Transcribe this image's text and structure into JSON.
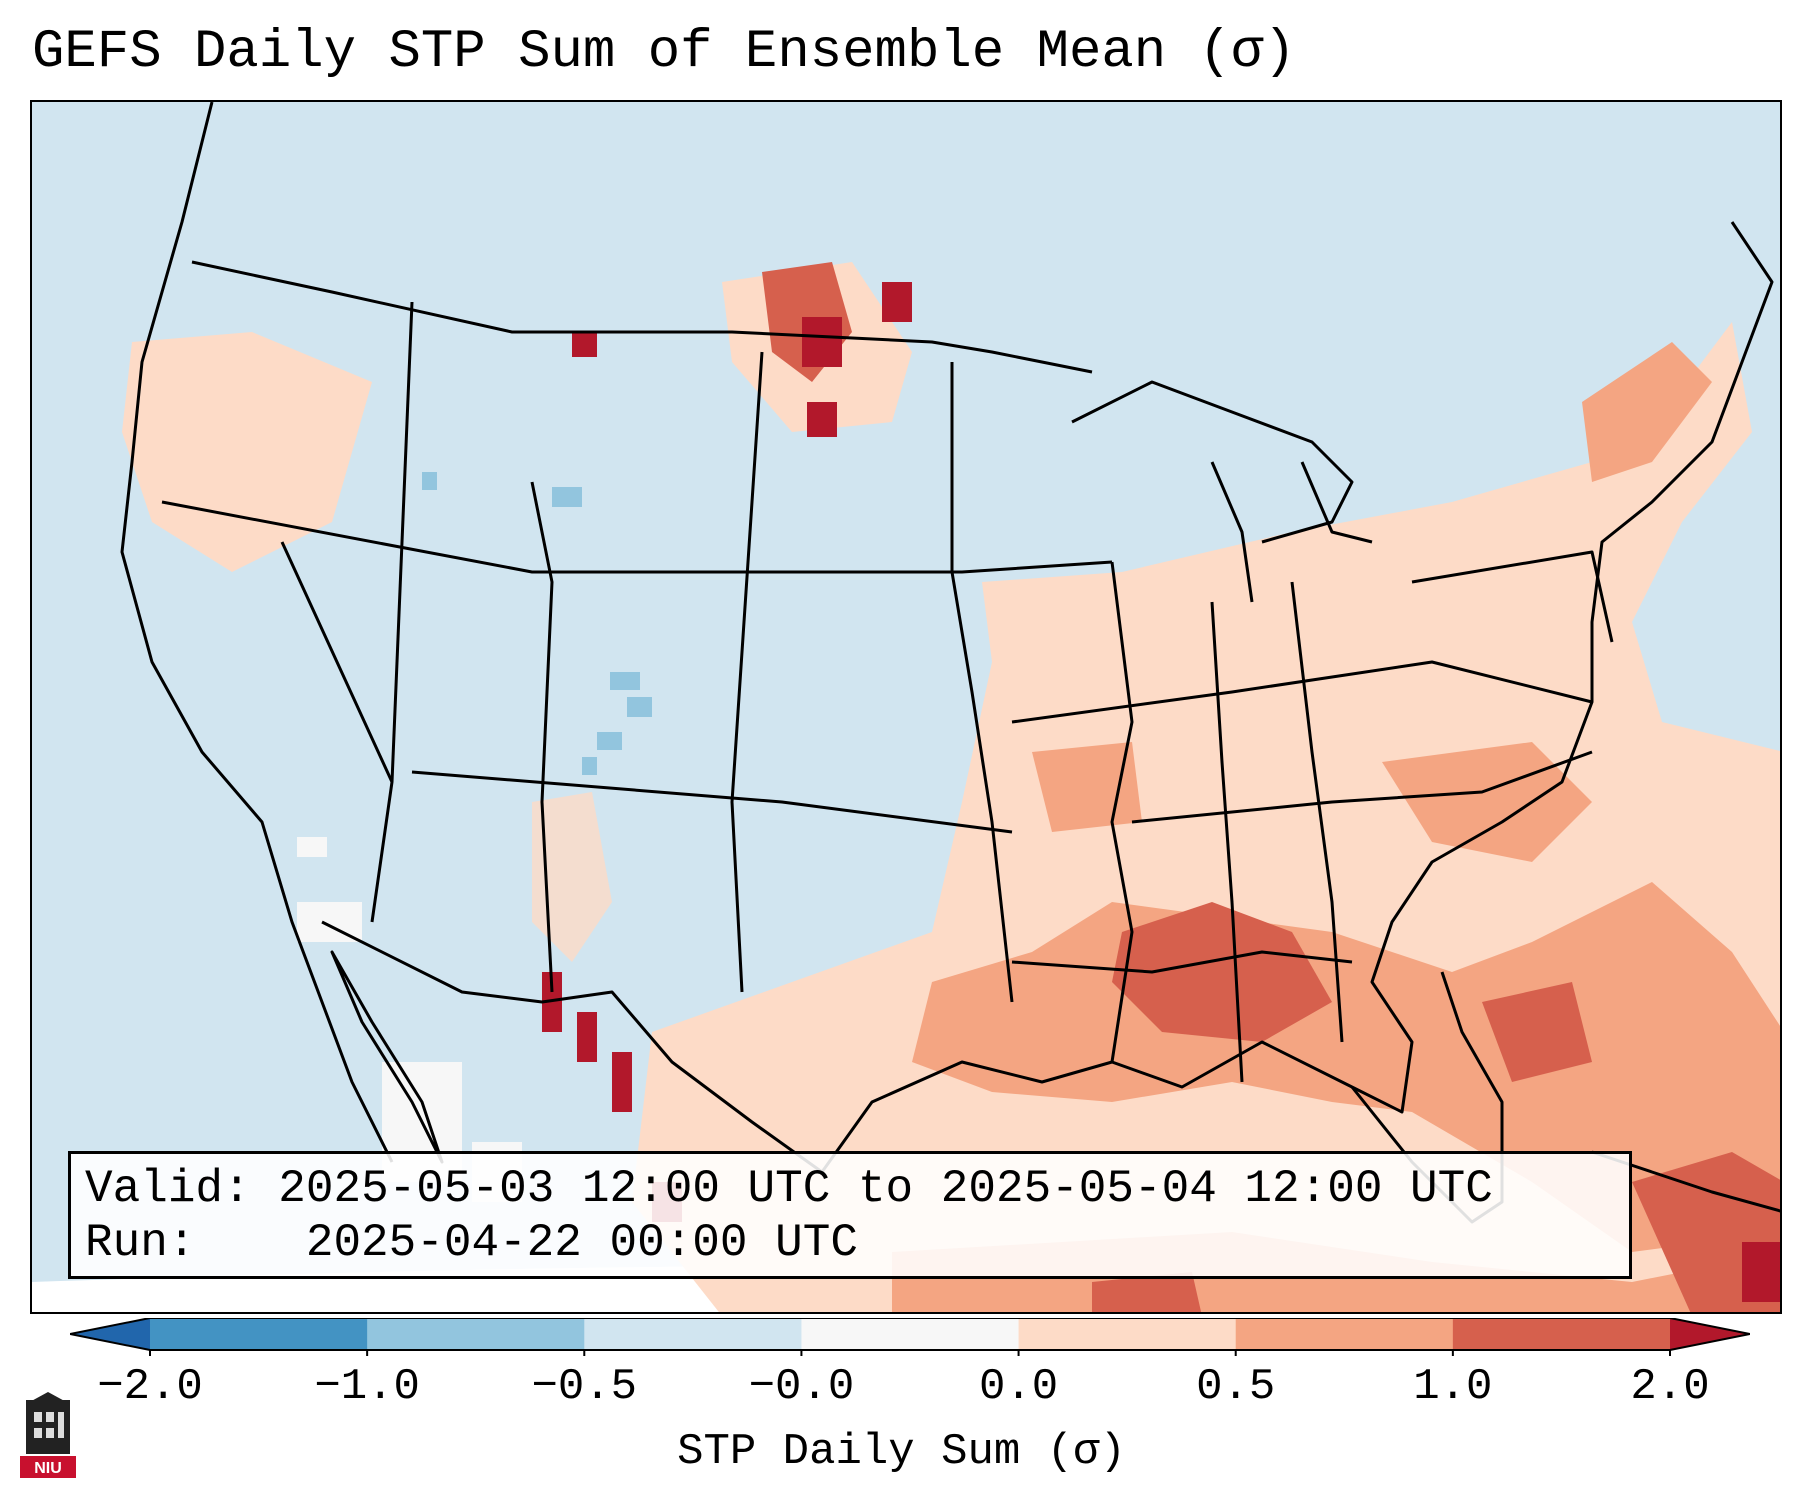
{
  "title": "GEFS Daily STP Sum of Ensemble Mean (σ)",
  "info": {
    "valid_label": "Valid:",
    "valid_value": "2025-05-03 12:00 UTC to 2025-05-04 12:00 UTC",
    "run_label": "Run:",
    "run_value": "2025-04-22 00:00 UTC"
  },
  "colorbar": {
    "label": "STP Daily Sum (σ)",
    "ticks": [
      "−2.0",
      "−1.0",
      "−0.5",
      "−0.0",
      "0.0",
      "0.5",
      "1.0",
      "2.0"
    ],
    "colors": {
      "below": "#2166ac",
      "bins": [
        "#4393c3",
        "#92c5de",
        "#d1e5f0",
        "#f7f7f7",
        "#fddbc7",
        "#f4a582",
        "#d6604d"
      ],
      "above": "#b2182b"
    }
  },
  "logo": {
    "text": "NIU",
    "icon": "university-tower-icon"
  },
  "map": {
    "region": "Contiguous United States, northern Mexico, Gulf of Mexico",
    "high_values": [
      "Gulf Coast from Louisiana to Florida",
      "Eastern Gulf of Mexico",
      "Cuba and southeastern Gulf",
      "North Dakota / southern Saskatchewan",
      "Chihuahua, Mexico"
    ]
  }
}
